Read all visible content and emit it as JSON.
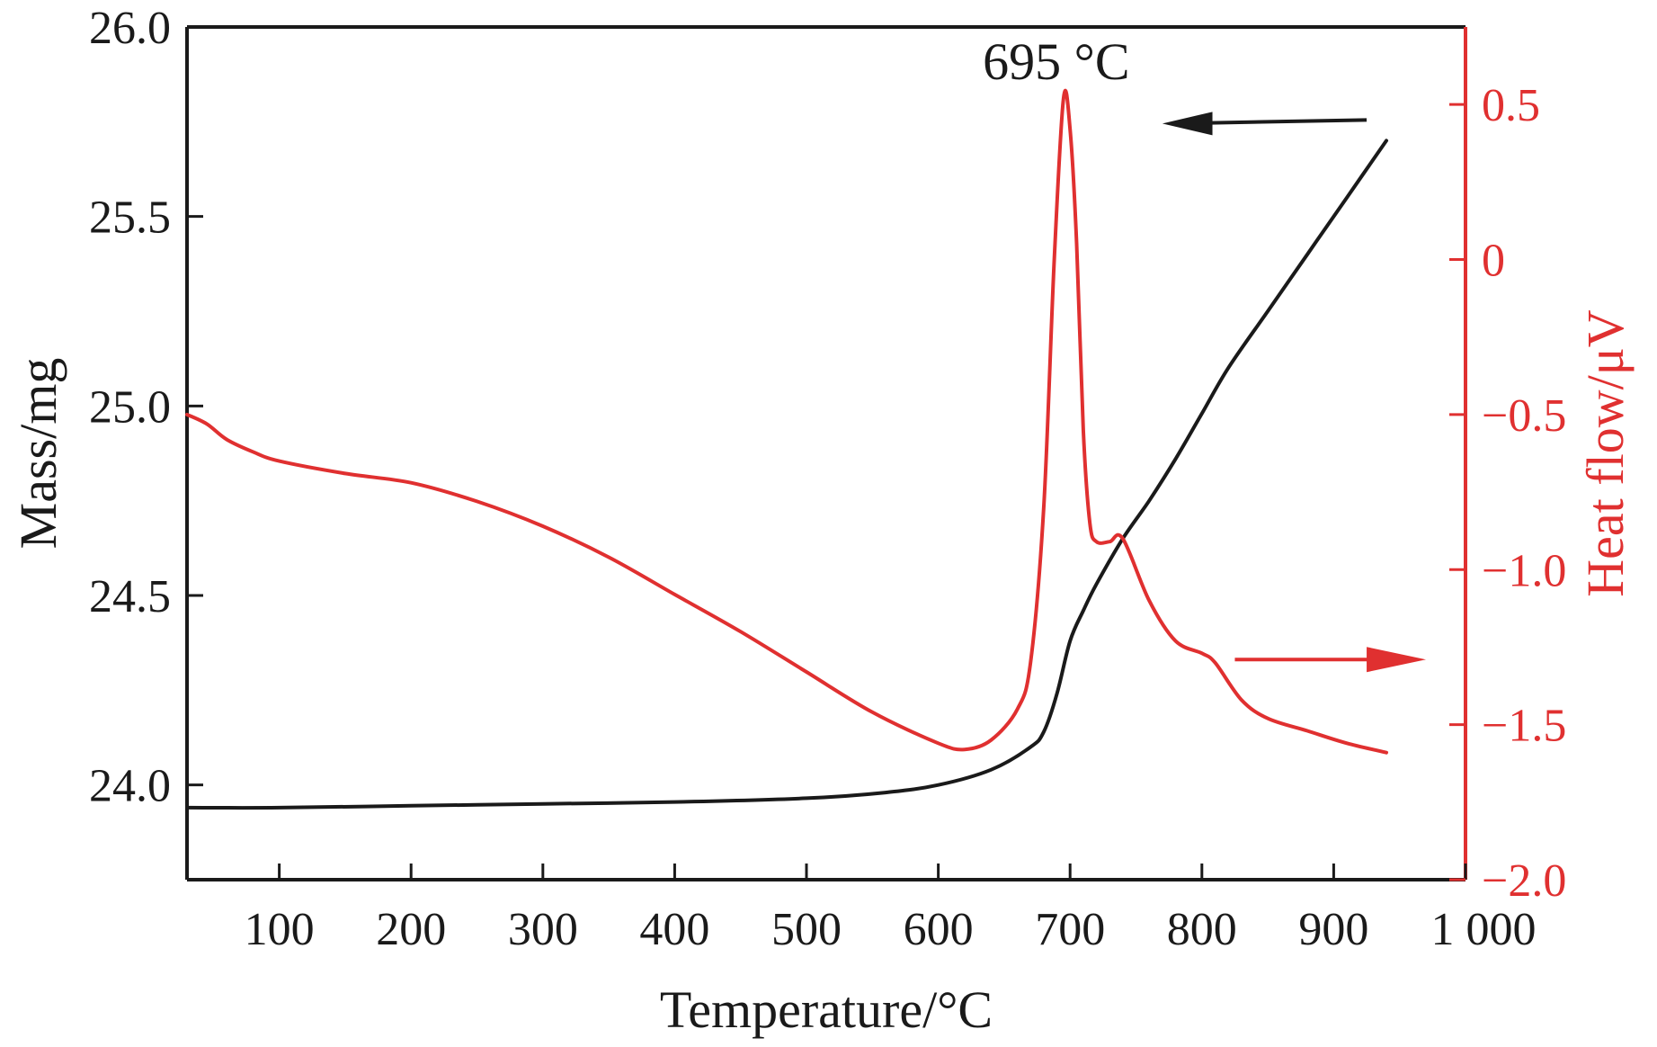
{
  "chart_data": {
    "type": "line",
    "title": "",
    "xlabel": "Temperature/°C",
    "ylabel_left": "Mass/mg",
    "ylabel_right": "Heat flow/μV",
    "xlim": [
      30,
      1000
    ],
    "ylim_left": [
      23.75,
      26.0
    ],
    "ylim_right": [
      -2.0,
      0.75
    ],
    "x_ticks": [
      100,
      200,
      300,
      400,
      500,
      600,
      700,
      800,
      900,
      1000
    ],
    "x_tick_labels": [
      "100",
      "200",
      "300",
      "400",
      "500",
      "600",
      "700",
      "800",
      "900",
      "1 000"
    ],
    "y_left_ticks": [
      24.0,
      24.5,
      25.0,
      25.5,
      26.0
    ],
    "y_left_tick_labels": [
      "24.0",
      "24.5",
      "25.0",
      "25.5",
      "26.0"
    ],
    "y_right_ticks": [
      -2.0,
      -1.5,
      -1.0,
      -0.5,
      0,
      0.5
    ],
    "y_right_tick_labels": [
      "−2.0",
      "−1.5",
      "−1.0",
      "−0.5",
      "0",
      "0.5"
    ],
    "grid": false,
    "colors": {
      "mass": "#1a1a1a",
      "heat": "#e03030",
      "axis_left": "#1a1a1a",
      "axis_right": "#e03030"
    },
    "series": [
      {
        "name": "Mass",
        "axis": "left",
        "x": [
          30,
          100,
          200,
          300,
          400,
          500,
          560,
          600,
          640,
          670,
          680,
          690,
          700,
          710,
          720,
          740,
          760,
          780,
          800,
          820,
          850,
          880,
          910,
          940
        ],
        "y": [
          23.94,
          23.94,
          23.945,
          23.95,
          23.955,
          23.965,
          23.98,
          24.0,
          24.04,
          24.1,
          24.14,
          24.24,
          24.38,
          24.46,
          24.53,
          24.65,
          24.75,
          24.86,
          24.98,
          25.1,
          25.25,
          25.4,
          25.55,
          25.7
        ]
      },
      {
        "name": "Heat flow",
        "axis": "right",
        "x": [
          30,
          45,
          60,
          80,
          100,
          150,
          200,
          250,
          300,
          350,
          400,
          450,
          500,
          550,
          600,
          620,
          640,
          660,
          670,
          680,
          688,
          695,
          700,
          705,
          710,
          715,
          720,
          730,
          740,
          760,
          780,
          800,
          810,
          830,
          850,
          880,
          910,
          940
        ],
        "y": [
          -0.5,
          -0.53,
          -0.58,
          -0.62,
          -0.65,
          -0.69,
          -0.72,
          -0.78,
          -0.86,
          -0.96,
          -1.08,
          -1.2,
          -1.33,
          -1.46,
          -1.56,
          -1.58,
          -1.55,
          -1.45,
          -1.3,
          -0.8,
          0.0,
          0.52,
          0.42,
          0.05,
          -0.55,
          -0.85,
          -0.91,
          -0.91,
          -0.9,
          -1.1,
          -1.23,
          -1.27,
          -1.3,
          -1.42,
          -1.48,
          -1.52,
          -1.56,
          -1.59
        ]
      }
    ],
    "annotations": [
      {
        "text": "695 °C",
        "x": 695,
        "y_right": 0.5
      }
    ]
  }
}
